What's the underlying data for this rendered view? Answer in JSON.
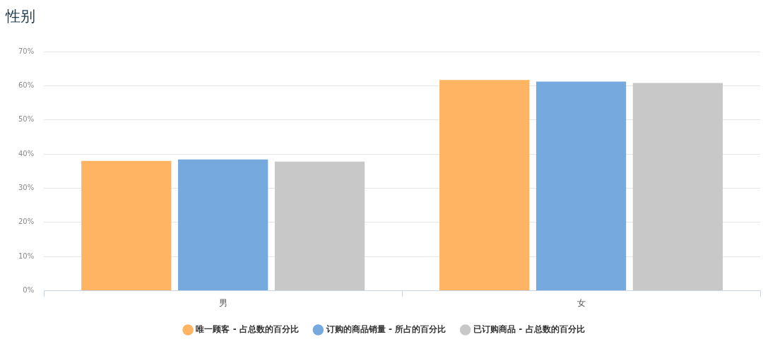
{
  "chart_data": {
    "type": "bar",
    "title": "性别",
    "categories": [
      "男",
      "女"
    ],
    "series": [
      {
        "name": "唯一顾客 - 占总数的百分比",
        "color": "#ffb464",
        "values": [
          38.0,
          61.7
        ]
      },
      {
        "name": "订购的商品销量 - 所占的百分比",
        "color": "#76aadf",
        "values": [
          38.4,
          61.2
        ]
      },
      {
        "name": "已订购商品 - 占总数的百分比",
        "color": "#c8c8c8",
        "values": [
          37.8,
          60.8
        ]
      }
    ],
    "ylim": [
      0,
      70
    ],
    "yticks": [
      {
        "value": 0,
        "label": "0%"
      },
      {
        "value": 10,
        "label": "10%"
      },
      {
        "value": 20,
        "label": "20%"
      },
      {
        "value": 30,
        "label": "30%"
      },
      {
        "value": 40,
        "label": "40%"
      },
      {
        "value": 50,
        "label": "50%"
      },
      {
        "value": 60,
        "label": "60%"
      },
      {
        "value": 70,
        "label": "70%"
      }
    ],
    "grid": "y",
    "legend": "bottom"
  }
}
